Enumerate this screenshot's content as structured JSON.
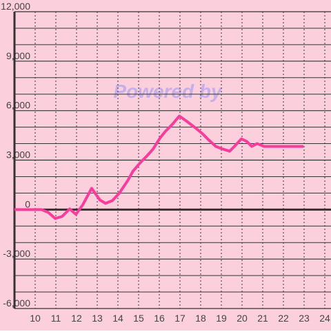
{
  "chart_data": {
    "type": "line",
    "watermark": "Powered by",
    "x": [
      9,
      10.3,
      10.63,
      10.97,
      11.3,
      11.67,
      11.97,
      12.3,
      12.73,
      13.13,
      13.4,
      13.73,
      14.07,
      14.47,
      14.73,
      15.07,
      15.4,
      15.7,
      16.03,
      16.3,
      16.63,
      16.97,
      17.3,
      17.7,
      18.07,
      18.4,
      18.73,
      19.07,
      19.4,
      19.63,
      19.97,
      20.23,
      20.47,
      20.73,
      21.07,
      22.97
    ],
    "series": [
      {
        "color": "#f73c9c",
        "values": [
          0,
          0,
          -170,
          -540,
          -420,
          40,
          -290,
          290,
          1290,
          580,
          380,
          540,
          1000,
          1750,
          2330,
          2830,
          3250,
          3670,
          4330,
          4750,
          5170,
          5670,
          5380,
          5000,
          4620,
          4210,
          3830,
          3670,
          3540,
          3830,
          4290,
          4130,
          3830,
          4000,
          3830,
          3830
        ]
      }
    ],
    "xlim": [
      9,
      24.3
    ],
    "xticks": [
      10,
      11,
      12,
      13,
      14,
      15,
      16,
      17,
      18,
      19,
      20,
      21,
      22,
      23,
      24
    ],
    "ylim": [
      -6000,
      12000
    ],
    "yticks": [
      {
        "value": -6000,
        "label": "-6,000"
      },
      {
        "value": -3000,
        "label": "-3,000"
      },
      0,
      {
        "value": 3000,
        "label": "3,000"
      },
      {
        "value": 6000,
        "label": "6,000"
      },
      {
        "value": 9000,
        "label": "9,000"
      },
      {
        "value": 12000,
        "label": "12,000"
      }
    ],
    "ygrid": [
      -5000,
      -4000,
      -2000,
      -1000,
      1000,
      2000,
      4000,
      5000,
      7000,
      8000,
      10000,
      11000
    ],
    "background": "#fccfdc"
  }
}
